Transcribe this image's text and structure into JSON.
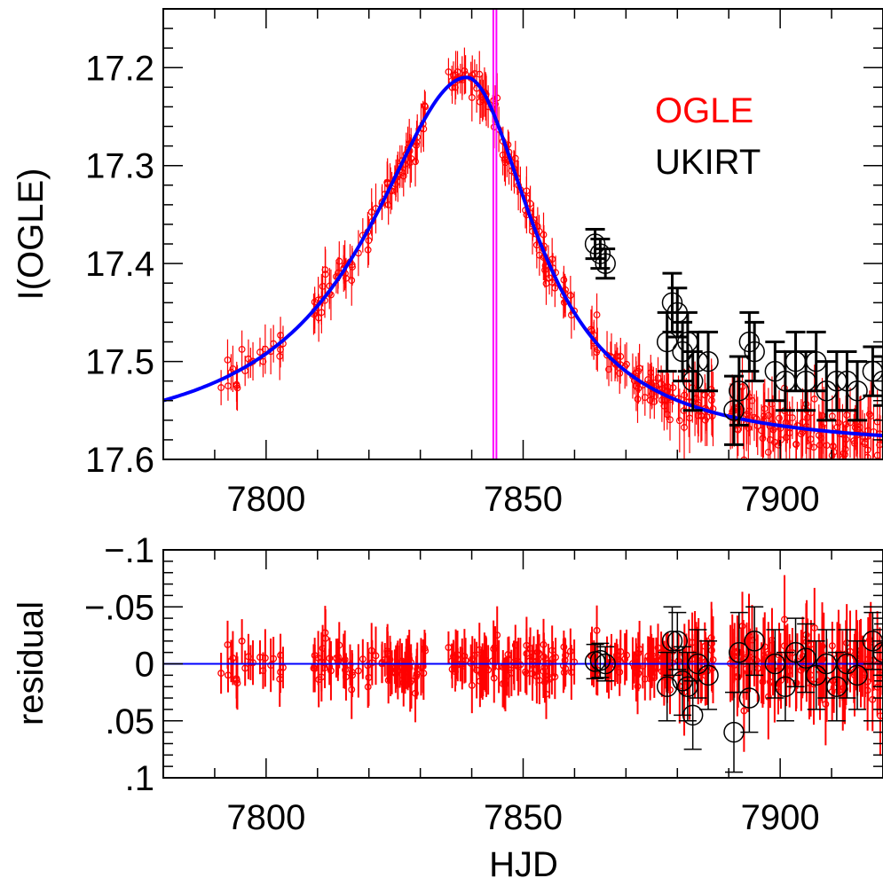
{
  "chart_data": [
    {
      "type": "scatter",
      "panel": "top",
      "title": "",
      "xlabel": "",
      "ylabel": "I(OGLE)",
      "xlim": [
        7780,
        7920
      ],
      "ylim": [
        17.6,
        17.14
      ],
      "y_inverted": true,
      "xticks": [
        7800,
        7850,
        7900
      ],
      "xtick_labels": [
        "7800",
        "7850",
        "7900"
      ],
      "yticks": [
        17.2,
        17.3,
        17.4,
        17.5,
        17.6
      ],
      "ytick_labels": [
        "17.2",
        "17.3",
        "17.4",
        "17.5",
        "17.6"
      ],
      "legend": {
        "placement": "top-right",
        "entries": [
          {
            "label": "OGLE",
            "color": "#ff0000"
          },
          {
            "label": "UKIRT",
            "color": "#000000"
          }
        ]
      },
      "vertical_lines_hjd": [
        7844.2,
        7844.8
      ],
      "vertical_line_color": "#ff00ff",
      "model": {
        "name": "",
        "color": "#0000ff",
        "t0": 7839,
        "baseline": 17.59,
        "amplitude": 0.38,
        "width_rise": 23,
        "width_decay": 16
      },
      "series": [
        {
          "name": "OGLE",
          "color": "#ff0000",
          "marker": "small-open-circle",
          "n_points": 470,
          "x_range": [
            7791,
            7920
          ],
          "typical_error": 0.02
        },
        {
          "name": "UKIRT",
          "color": "#000000",
          "marker": "large-open-circle",
          "x": [
            7864,
            7865,
            7866,
            7878,
            7879,
            7880,
            7881,
            7882,
            7883,
            7884,
            7886,
            7891,
            7892,
            7894,
            7895,
            7899,
            7901,
            7903,
            7905,
            7907,
            7909,
            7911,
            7913,
            7915,
            7918,
            7920
          ],
          "y": [
            17.38,
            17.39,
            17.4,
            17.48,
            17.44,
            17.45,
            17.49,
            17.48,
            17.52,
            17.5,
            17.5,
            17.55,
            17.53,
            17.48,
            17.49,
            17.51,
            17.52,
            17.5,
            17.52,
            17.5,
            17.53,
            17.52,
            17.52,
            17.53,
            17.51,
            17.52
          ],
          "yerr": [
            0.015,
            0.015,
            0.015,
            0.03,
            0.03,
            0.025,
            0.03,
            0.03,
            0.03,
            0.03,
            0.03,
            0.035,
            0.035,
            0.03,
            0.03,
            0.03,
            0.03,
            0.03,
            0.03,
            0.03,
            0.03,
            0.03,
            0.03,
            0.03,
            0.025,
            0.025
          ]
        }
      ]
    },
    {
      "type": "scatter",
      "panel": "bottom",
      "title": "",
      "xlabel": "HJD",
      "ylabel": "residual",
      "xlim": [
        7780,
        7920
      ],
      "ylim": [
        0.1,
        -0.1
      ],
      "y_inverted": true,
      "xticks": [
        7800,
        7850,
        7900
      ],
      "xtick_labels": [
        "7800",
        "7850",
        "7900"
      ],
      "yticks": [
        -0.1,
        -0.05,
        0,
        0.05,
        0.1
      ],
      "ytick_labels": [
        "−.1",
        "−.05",
        "0",
        ".05",
        ".1"
      ],
      "zero_line_color": "#0000ff",
      "series": [
        {
          "name": "OGLE",
          "color": "#ff0000",
          "marker": "small-open-circle",
          "n_points": 470,
          "x_range": [
            7791,
            7920
          ],
          "typical_error": 0.02
        },
        {
          "name": "UKIRT",
          "color": "#000000",
          "marker": "large-open-circle",
          "x": [
            7864,
            7865,
            7866,
            7878,
            7879,
            7880,
            7881,
            7882,
            7883,
            7884,
            7886,
            7891,
            7892,
            7894,
            7895,
            7899,
            7901,
            7903,
            7905,
            7907,
            7909,
            7911,
            7913,
            7915,
            7918,
            7920
          ],
          "y": [
            -0.002,
            -0.003,
            0.0,
            0.02,
            -0.02,
            -0.02,
            0.015,
            0.02,
            0.045,
            0.0,
            0.01,
            0.06,
            -0.01,
            0.03,
            -0.02,
            0.0,
            0.02,
            -0.01,
            -0.005,
            0.01,
            0.0,
            0.02,
            0.0,
            0.01,
            -0.02,
            -0.01
          ],
          "yerr": [
            0.015,
            0.015,
            0.015,
            0.03,
            0.03,
            0.025,
            0.03,
            0.03,
            0.03,
            0.03,
            0.03,
            0.035,
            0.035,
            0.03,
            0.03,
            0.03,
            0.03,
            0.03,
            0.03,
            0.03,
            0.03,
            0.03,
            0.03,
            0.03,
            0.025,
            0.025
          ]
        }
      ]
    }
  ]
}
